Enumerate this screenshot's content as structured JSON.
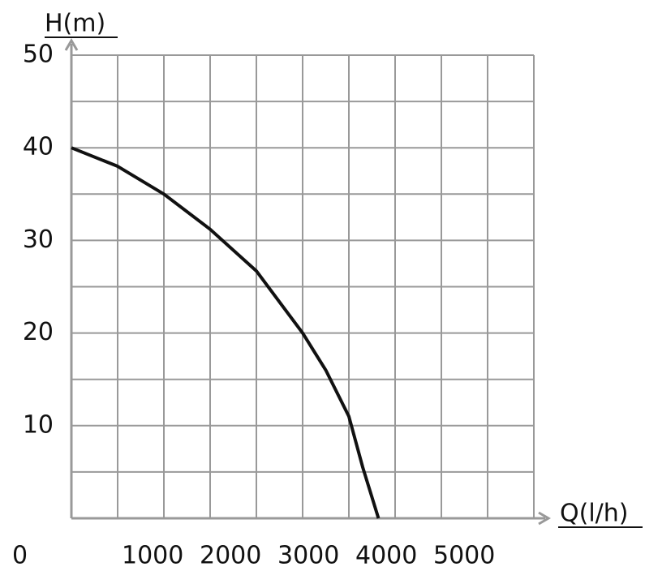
{
  "chart_data": {
    "type": "line",
    "y_label": "H(m)",
    "x_label": "Q(l/h)",
    "origin_label": "0",
    "x": [
      0,
      500,
      1000,
      1500,
      2000,
      2500,
      2750,
      3000,
      3150,
      3320
    ],
    "series": [
      {
        "name": "H",
        "color": "#111111",
        "values": [
          40,
          38,
          35,
          31.2,
          26.7,
          20,
          16,
          11,
          5.5,
          0
        ]
      }
    ],
    "xlim": [
      0,
      5000
    ],
    "xticks": [
      1000,
      2000,
      3000,
      4000,
      5000
    ],
    "ylim": [
      0,
      50
    ],
    "yticks": [
      10,
      20,
      30,
      40,
      50
    ],
    "grid": true
  }
}
